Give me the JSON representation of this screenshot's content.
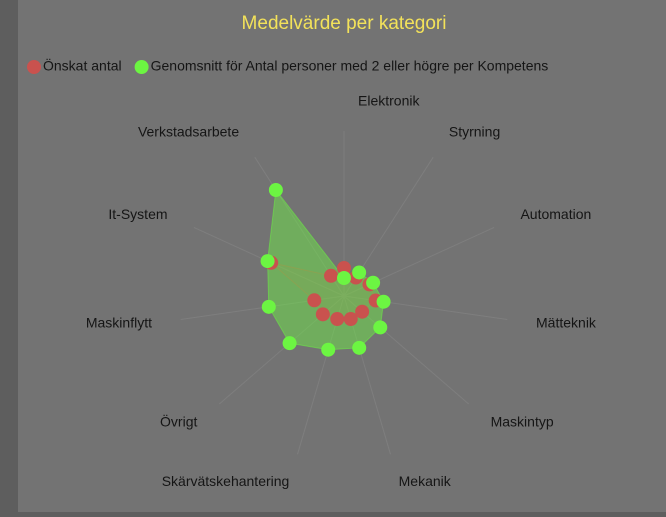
{
  "chart_data": {
    "type": "radar",
    "title": "Medelvärde per kategori",
    "categories": [
      "Elektronik",
      "Styrning",
      "Automation",
      "Mätteknik",
      "Maskintyp",
      "Mekanik",
      "Skärvätskehantering",
      "Övrigt",
      "Maskinflytt",
      "It-System",
      "Verkstadsarbete"
    ],
    "series": [
      {
        "name": "Önskat antal",
        "color": "#c9524e",
        "values": [
          0.7,
          0.55,
          0.7,
          0.8,
          0.6,
          0.6,
          0.6,
          0.7,
          0.75,
          2.0,
          0.6
        ]
      },
      {
        "name": "Genomsnitt för Antal personer med 2 eller högre per Kompetens",
        "color": "#6cf542",
        "values": [
          0.45,
          0.7,
          0.8,
          1.0,
          1.2,
          1.35,
          1.4,
          1.8,
          1.9,
          2.1,
          3.15
        ]
      }
    ],
    "rlim": [
      0,
      4
    ],
    "legend": "top"
  }
}
